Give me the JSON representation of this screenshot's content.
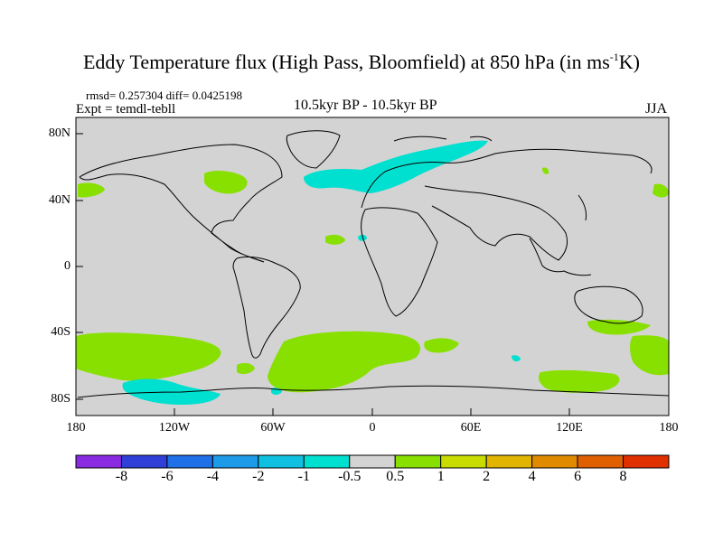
{
  "title": {
    "main": "Eddy Temperature flux (High Pass, Bloomfield) at 850 hPa (in ms",
    "sup": "-1",
    "end": "K)"
  },
  "stats": "rmsd= 0.257304 diff= 0.0425198",
  "experiment": "Expt = temdl-tebll",
  "subtitle": "10.5kyr BP - 10.5kyr BP",
  "season": "JJA",
  "colors": {
    "land_background": "#d3d3d3",
    "positive_light": "#88e000",
    "negative_light": "#00e0d0"
  },
  "chart_data": {
    "type": "heatmap",
    "projection": "cylindrical-equidistant",
    "lon_range": [
      -180,
      180
    ],
    "lat_range": [
      -90,
      90
    ],
    "y_ticks": [
      "80N",
      "40N",
      "0",
      "40S",
      "80S"
    ],
    "x_ticks": [
      "180",
      "120W",
      "60W",
      "0",
      "60E",
      "120E",
      "180"
    ],
    "colorbar": {
      "labels": [
        "-8",
        "-6",
        "-4",
        "-2",
        "-1",
        "-0.5",
        "0.5",
        "1",
        "2",
        "4",
        "6",
        "8"
      ],
      "colors": [
        "#8a2be2",
        "#2f3fd8",
        "#1f6fe6",
        "#1e9be8",
        "#10c0e0",
        "#00e0d0",
        "#d3d3d3",
        "#88e000",
        "#c8dc00",
        "#e0b400",
        "#e08a00",
        "#e06000",
        "#e03000"
      ]
    }
  }
}
